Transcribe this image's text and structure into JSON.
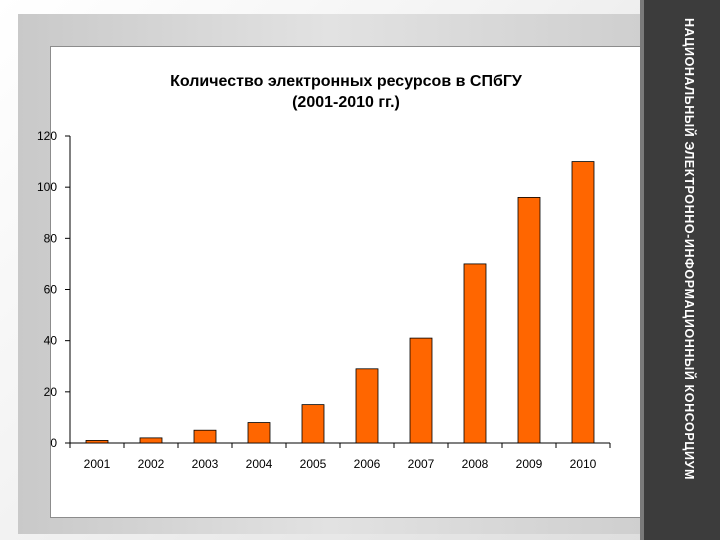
{
  "side_banner": "НАЦИОНАЛЬНЫЙ ЭЛЕКТРОННО-ИНФОРМАЦИОННЫЙ КОНСОРЦИУМ",
  "colors": {
    "bar_fill": "#ff6600",
    "bar_stroke": "#000000",
    "side_band": "#3c3c3c"
  },
  "chart_data": {
    "type": "bar",
    "title": "Количество электронных ресурсов в СПбГУ\n(2001-2010 гг.)",
    "xlabel": "",
    "ylabel": "",
    "categories": [
      "2001",
      "2002",
      "2003",
      "2004",
      "2005",
      "2006",
      "2007",
      "2008",
      "2009",
      "2010"
    ],
    "values": [
      1,
      2,
      5,
      8,
      15,
      29,
      41,
      70,
      96,
      110
    ],
    "ylim": [
      0,
      120
    ],
    "yticks": [
      "0",
      "20",
      "40",
      "60",
      "80",
      "100",
      "120"
    ],
    "grid": false,
    "legend": "none"
  }
}
